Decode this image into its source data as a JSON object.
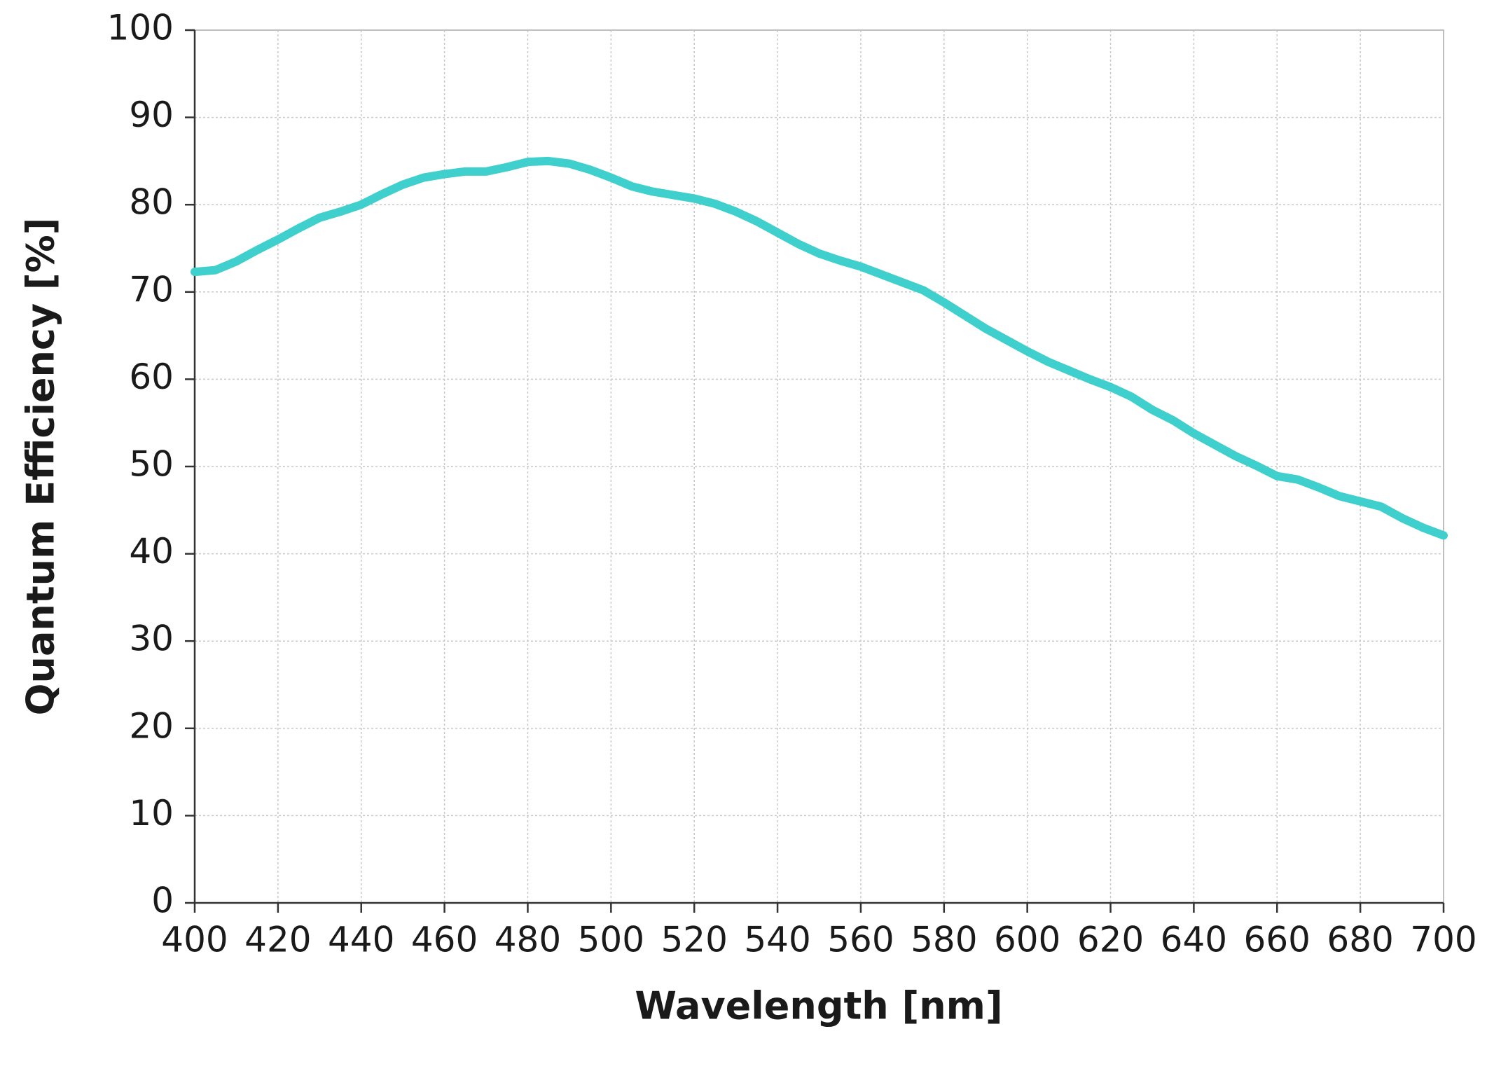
{
  "chart_data": {
    "type": "line",
    "x_label": "Wavelength [nm]",
    "y_label": "Quantum Efficiency [%]",
    "x": [
      400,
      405,
      410,
      415,
      420,
      425,
      430,
      435,
      440,
      445,
      450,
      455,
      460,
      465,
      470,
      475,
      480,
      485,
      490,
      495,
      500,
      505,
      510,
      515,
      520,
      525,
      530,
      535,
      540,
      545,
      550,
      555,
      560,
      565,
      570,
      575,
      580,
      585,
      590,
      595,
      600,
      605,
      610,
      615,
      620,
      625,
      630,
      635,
      640,
      645,
      650,
      655,
      660,
      665,
      670,
      675,
      680,
      685,
      690,
      695,
      700
    ],
    "series": [
      {
        "color": "#3fcfcc",
        "values": [
          72.3,
          72.5,
          73.5,
          74.8,
          76,
          77.3,
          78.5,
          79.2,
          80,
          81.2,
          82.3,
          83.1,
          83.5,
          83.8,
          83.8,
          84.3,
          84.9,
          85,
          84.7,
          84,
          83.1,
          82.1,
          81.5,
          81.1,
          80.7,
          80.1,
          79.2,
          78.1,
          76.8,
          75.5,
          74.4,
          73.6,
          72.9,
          72,
          71.1,
          70.2,
          68.8,
          67.3,
          65.8,
          64.5,
          63.2,
          62,
          61,
          60,
          59.1,
          58,
          56.5,
          55.3,
          53.8,
          52.5,
          51.2,
          50.1,
          48.9,
          48.5,
          47.6,
          46.6,
          46,
          45.4,
          44.1,
          43,
          42.1
        ]
      }
    ],
    "xlim": [
      400,
      700
    ],
    "xticks": [
      400,
      420,
      440,
      460,
      480,
      500,
      520,
      540,
      560,
      580,
      600,
      620,
      640,
      660,
      680,
      700
    ],
    "ylim": [
      0,
      100
    ],
    "yticks": [
      0,
      10,
      20,
      30,
      40,
      50,
      60,
      70,
      80,
      90,
      100
    ],
    "grid": true
  }
}
